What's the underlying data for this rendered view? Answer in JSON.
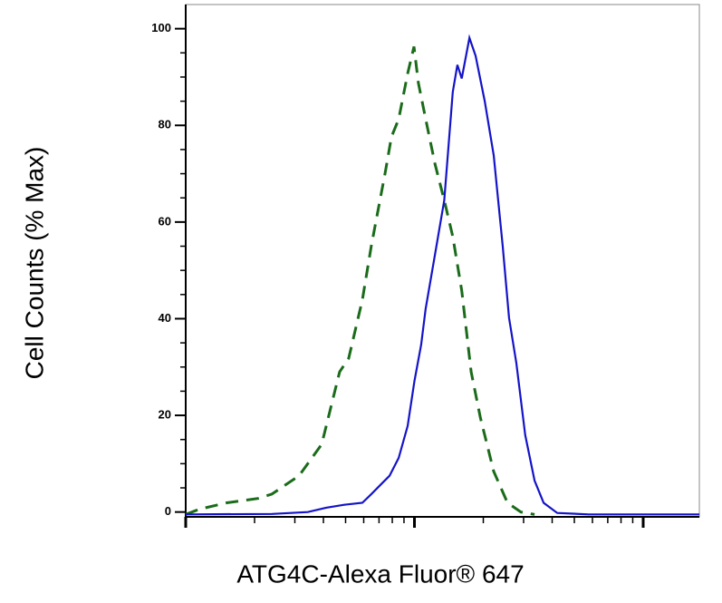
{
  "chart_data": {
    "type": "line",
    "xlabel": "ATG4C-Alexa Fluor® 647",
    "ylabel": "Cell Counts (% Max)",
    "xscale": "log",
    "xlim": [
      1,
      176
    ],
    "xticks": [
      1,
      10,
      100
    ],
    "ylim": [
      -1,
      105
    ],
    "yticks": [
      0,
      20,
      40,
      60,
      80,
      100
    ],
    "series": [
      {
        "color": "#1a6b1a",
        "dash": true,
        "x": [
          1,
          1.15,
          1.51,
          2.07,
          2.38,
          3.13,
          3.93,
          4.71,
          5.16,
          5.92,
          6.48,
          7.44,
          7.93,
          8.53,
          9.34,
          9.95,
          10.4,
          11.2,
          12.3,
          13.5,
          14.7,
          16.1,
          17.7,
          19.4,
          22.2,
          25.5,
          29.2,
          33.5
        ],
        "values": [
          -0.5,
          0.6,
          1.9,
          2.8,
          3.7,
          7.5,
          14.0,
          29.0,
          31.8,
          43.9,
          55.1,
          70.1,
          77.6,
          81.3,
          90.7,
          96.3,
          88.8,
          81.3,
          72.0,
          64.5,
          57.0,
          45.8,
          29.0,
          19.6,
          8.4,
          1.9,
          0,
          -0.5
        ]
      },
      {
        "color": "#1414c8",
        "dash": false,
        "x": [
          1,
          2.38,
          3.42,
          4.11,
          4.93,
          5.92,
          6.48,
          7.1,
          7.78,
          8.53,
          9.34,
          10.0,
          10.7,
          11.2,
          12.3,
          13.5,
          14.7,
          15.4,
          16.1,
          17.4,
          18.5,
          20.3,
          22.2,
          24.3,
          25.9,
          27.9,
          30.5,
          33.5,
          36.7,
          42.1,
          57.8,
          176
        ],
        "values": [
          -0.5,
          -0.4,
          0,
          0.9,
          1.5,
          1.9,
          3.7,
          5.6,
          7.5,
          11.2,
          17.8,
          27.1,
          34.6,
          42.1,
          53.3,
          64.5,
          86.9,
          92.5,
          89.7,
          98.1,
          94.4,
          85.0,
          73.8,
          55.1,
          40.2,
          30.8,
          15.9,
          6.5,
          1.9,
          -0.2,
          -0.5,
          -0.5
        ]
      }
    ]
  }
}
